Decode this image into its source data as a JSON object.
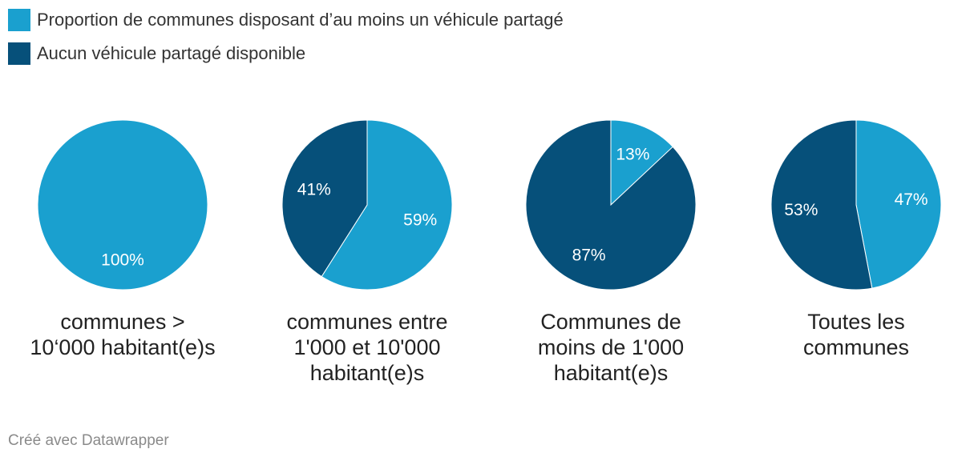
{
  "colors": {
    "shared": "#1aa0cf",
    "none": "#06507a"
  },
  "legend": {
    "items": [
      {
        "label": "Proportion de communes disposant d’au moins un véhicule partagé",
        "color": "#1aa0cf"
      },
      {
        "label": "Aucun véhicule partagé disponible",
        "color": "#06507a"
      }
    ]
  },
  "chart_data": {
    "type": "pie",
    "series": [
      {
        "name": "Proportion de communes disposant d’au moins un véhicule partagé",
        "color": "#1aa0cf"
      },
      {
        "name": "Aucun véhicule partagé disponible",
        "color": "#06507a"
      }
    ],
    "charts": [
      {
        "title_lines": [
          "communes >",
          "10‘000 habitant(e)s"
        ],
        "values": [
          100,
          0
        ],
        "labels": [
          "100%",
          ""
        ]
      },
      {
        "title_lines": [
          "communes entre",
          "1'000 et 10'000",
          "habitant(e)s"
        ],
        "values": [
          59,
          41
        ],
        "labels": [
          "59%",
          "41%"
        ]
      },
      {
        "title_lines": [
          "Communes de",
          "moins de 1'000",
          "habitant(e)s"
        ],
        "values": [
          13,
          87
        ],
        "labels": [
          "13%",
          "87%"
        ]
      },
      {
        "title_lines": [
          "Toutes les",
          "communes"
        ],
        "values": [
          47,
          53
        ],
        "labels": [
          "47%",
          "53%"
        ]
      }
    ]
  },
  "footer": {
    "credit": "Créé avec Datawrapper"
  }
}
